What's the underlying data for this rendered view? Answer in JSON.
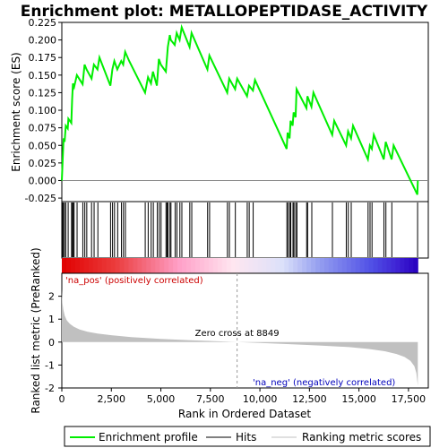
{
  "chart_data": {
    "type": "line",
    "title": "Enrichment plot: METALLOPEPTIDASE_ACTIVITY",
    "top_panel": {
      "ylabel": "Enrichment score (ES)",
      "ylim": [
        -0.03,
        0.225
      ],
      "yticks": [
        -0.025,
        0.0,
        0.025,
        0.05,
        0.075,
        0.1,
        0.125,
        0.15,
        0.175,
        0.2,
        0.225
      ],
      "ytick_labels": [
        "-0.025",
        "0.000",
        "0.025",
        "0.050",
        "0.075",
        "0.100",
        "0.125",
        "0.150",
        "0.175",
        "0.200",
        "0.225"
      ],
      "series": [
        {
          "name": "Enrichment profile",
          "color": "#00ee00",
          "x": [
            0,
            60,
            90,
            140,
            200,
            300,
            330,
            480,
            520,
            560,
            620,
            760,
            1050,
            1150,
            1250,
            1500,
            1620,
            1800,
            1900,
            2450,
            2550,
            2650,
            2800,
            3000,
            3100,
            3200,
            3400,
            4200,
            4350,
            4500,
            4600,
            4800,
            4900,
            5000,
            5250,
            5300,
            5350,
            5450,
            5500,
            5700,
            5800,
            5950,
            6050,
            6450,
            6550,
            7350,
            7450,
            8350,
            8450,
            8750,
            8850,
            9350,
            9450,
            9650,
            9750,
            11350,
            11400,
            11500,
            11550,
            11650,
            11700,
            11800,
            11850,
            12350,
            12400,
            12600,
            12700,
            13650,
            13750,
            14350,
            14450,
            14600,
            14700,
            15450,
            15550,
            15650,
            15750,
            16250,
            16350,
            16650,
            16750,
            17950,
            17970
          ],
          "y": [
            0.0,
            0.04,
            0.06,
            0.055,
            0.078,
            0.074,
            0.088,
            0.082,
            0.115,
            0.138,
            0.133,
            0.15,
            0.137,
            0.165,
            0.158,
            0.145,
            0.165,
            0.158,
            0.175,
            0.135,
            0.158,
            0.17,
            0.158,
            0.17,
            0.165,
            0.183,
            0.17,
            0.125,
            0.147,
            0.138,
            0.155,
            0.135,
            0.173,
            0.165,
            0.155,
            0.172,
            0.19,
            0.207,
            0.2,
            0.193,
            0.21,
            0.2,
            0.218,
            0.19,
            0.21,
            0.158,
            0.178,
            0.125,
            0.145,
            0.13,
            0.145,
            0.12,
            0.135,
            0.128,
            0.143,
            0.045,
            0.068,
            0.06,
            0.085,
            0.078,
            0.097,
            0.09,
            0.13,
            0.103,
            0.12,
            0.105,
            0.125,
            0.065,
            0.085,
            0.05,
            0.07,
            0.06,
            0.078,
            0.03,
            0.05,
            0.045,
            0.065,
            0.03,
            0.055,
            0.03,
            0.05,
            -0.02,
            0.0
          ]
        }
      ]
    },
    "hits": {
      "name": "Hits",
      "x": [
        30,
        80,
        130,
        200,
        320,
        490,
        540,
        570,
        620,
        770,
        1060,
        1160,
        1260,
        1500,
        1630,
        1820,
        2460,
        2560,
        2660,
        2820,
        3010,
        3110,
        3210,
        4210,
        4360,
        4510,
        4620,
        4820,
        4920,
        5010,
        5260,
        5310,
        5360,
        5460,
        5510,
        5720,
        5810,
        5960,
        6060,
        6460,
        6560,
        7360,
        7460,
        8360,
        8460,
        8760,
        9360,
        9460,
        9660,
        11360,
        11420,
        11510,
        11560,
        11670,
        11720,
        11810,
        11870,
        12360,
        12410,
        12620,
        13660,
        14360,
        14460,
        14610,
        15460,
        15560,
        15660,
        16260,
        16360,
        16660,
        17960
      ]
    },
    "bottom_panel": {
      "ylabel": "Ranked list metric (PreRanked)",
      "xlabel": "Rank in Ordered Dataset",
      "ylim": [
        -2.0,
        3.0
      ],
      "yticks": [
        -2,
        -1,
        0,
        1,
        2
      ],
      "ytick_labels": [
        "-2",
        "-1",
        "0",
        "1",
        "2"
      ],
      "xlim": [
        0,
        18500
      ],
      "xticks": [
        0,
        2500,
        5000,
        7500,
        10000,
        12500,
        15000,
        17500
      ],
      "xtick_labels": [
        "0",
        "2,500",
        "5,000",
        "7,500",
        "10,000",
        "12,500",
        "15,000",
        "17,500"
      ],
      "metric_x": [
        0,
        30,
        80,
        150,
        250,
        400,
        600,
        900,
        1300,
        1800,
        2500,
        3500,
        5000,
        6500,
        8000,
        8849,
        10000,
        11500,
        13000,
        14500,
        15500,
        16300,
        16900,
        17300,
        17600,
        17800,
        17900,
        17970
      ],
      "metric_y": [
        2.3,
        1.7,
        1.4,
        1.15,
        0.95,
        0.8,
        0.67,
        0.55,
        0.45,
        0.37,
        0.3,
        0.22,
        0.14,
        0.08,
        0.03,
        0.0,
        -0.04,
        -0.09,
        -0.15,
        -0.22,
        -0.3,
        -0.4,
        -0.52,
        -0.65,
        -0.82,
        -1.05,
        -1.35,
        -1.9
      ]
    },
    "annotations": {
      "pos": "'na_pos' (positively correlated)",
      "neg": "'na_neg' (negatively correlated)",
      "zero": "Zero cross at 8849",
      "zero_x": 8849
    },
    "legend": {
      "placement": "bottom",
      "items": [
        {
          "label": "Enrichment profile",
          "color": "#00ee00"
        },
        {
          "label": "Hits",
          "color": "#000000"
        },
        {
          "label": "Ranking metric scores",
          "color": "#c0c0c0"
        }
      ]
    }
  }
}
